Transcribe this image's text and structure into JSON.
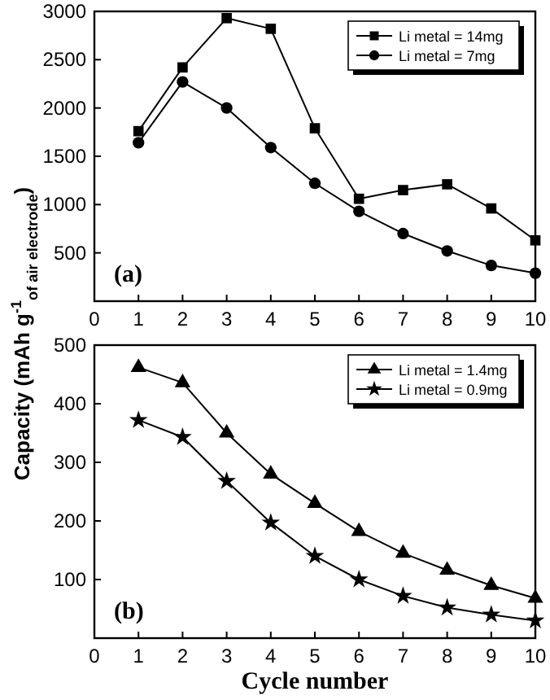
{
  "chart_data": [
    {
      "type": "line",
      "ylabel": "Capacity (mAh g$^{-1}$$_{of air electrode}$)",
      "x": [
        1,
        2,
        3,
        4,
        5,
        6,
        7,
        8,
        9,
        10
      ],
      "xlim": [
        0,
        10
      ],
      "xticks": [
        0,
        1,
        2,
        3,
        4,
        5,
        6,
        7,
        8,
        9,
        10
      ],
      "ylim": [
        0,
        3000
      ],
      "yticks": [
        500,
        1000,
        1500,
        2000,
        2500,
        3000
      ],
      "legend": "top right",
      "annotations": [
        "(a)"
      ],
      "series": [
        {
          "name": "Li metal = 14mg",
          "color": "#000000",
          "marker": "square",
          "values": [
            1760,
            2420,
            2930,
            2820,
            1790,
            1060,
            1150,
            1210,
            960,
            630
          ]
        },
        {
          "name": "Li metal = 7mg",
          "color": "#000000",
          "marker": "circle",
          "values": [
            1640,
            2270,
            2000,
            1590,
            1220,
            930,
            700,
            520,
            370,
            290
          ]
        }
      ]
    },
    {
      "type": "line",
      "xlabel": "Cycle number",
      "x": [
        1,
        2,
        3,
        4,
        5,
        6,
        7,
        8,
        9,
        10
      ],
      "xlim": [
        0,
        10
      ],
      "xticks": [
        0,
        1,
        2,
        3,
        4,
        5,
        6,
        7,
        8,
        9,
        10
      ],
      "ylim": [
        0,
        500
      ],
      "yticks": [
        100,
        200,
        300,
        400,
        500
      ],
      "legend": "top right",
      "annotations": [
        "(b)"
      ],
      "series": [
        {
          "name": "Li metal = 1.4mg",
          "color": "#000000",
          "marker": "triangle",
          "values": [
            462,
            436,
            350,
            280,
            230,
            182,
            145,
            116,
            90,
            68
          ]
        },
        {
          "name": "Li metal = 0.9mg",
          "color": "#000000",
          "marker": "star",
          "values": [
            372,
            343,
            268,
            197,
            140,
            100,
            72,
            52,
            40,
            30
          ]
        }
      ]
    }
  ]
}
